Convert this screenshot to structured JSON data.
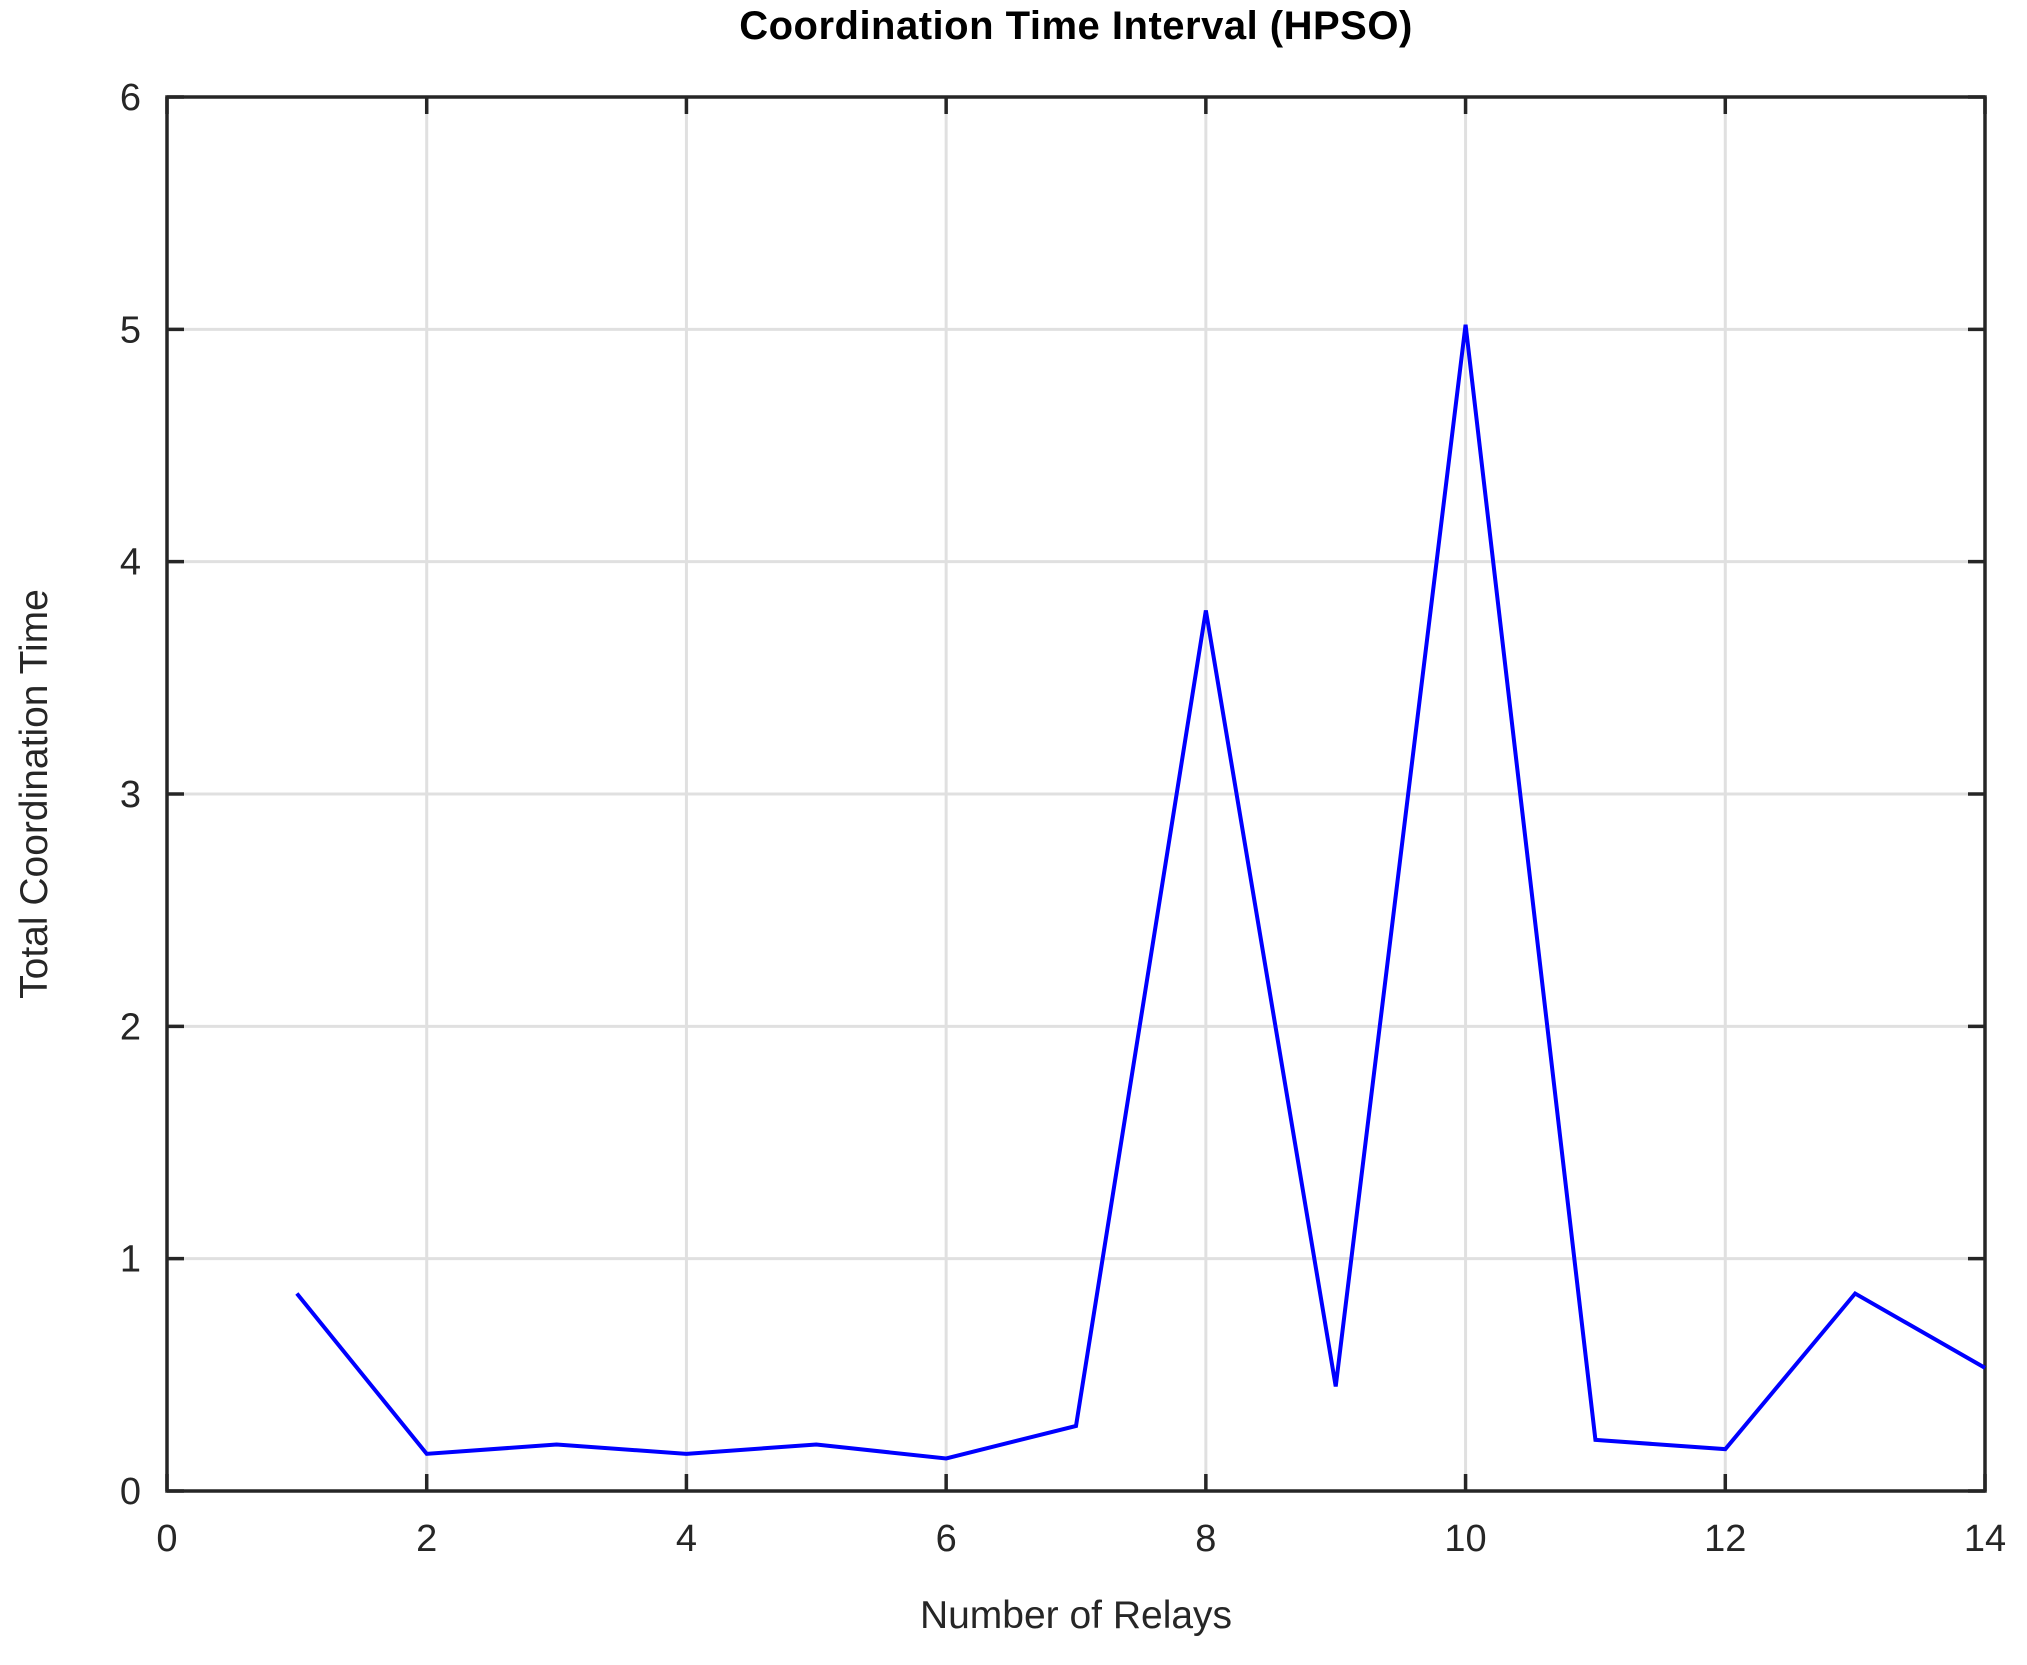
{
  "chart_data": {
    "type": "line",
    "title": "Coordination Time Interval (HPSO)",
    "xlabel": "Number of Relays",
    "ylabel": "Total Coordination Time",
    "x": [
      1,
      2,
      3,
      4,
      5,
      6,
      7,
      8,
      9,
      10,
      11,
      12,
      13,
      14
    ],
    "series": [
      {
        "name": "HPSO",
        "color": "#0000ff",
        "values": [
          0.85,
          0.16,
          0.2,
          0.16,
          0.2,
          0.14,
          0.28,
          3.79,
          0.45,
          5.02,
          0.22,
          0.18,
          0.85,
          0.53
        ]
      }
    ],
    "xlim": [
      0,
      14
    ],
    "ylim": [
      0,
      6
    ],
    "xticks": [
      0,
      2,
      4,
      6,
      8,
      10,
      12,
      14
    ],
    "yticks": [
      0,
      1,
      2,
      3,
      4,
      5,
      6
    ],
    "grid": true,
    "legend": false,
    "box": true,
    "axis_color": "#262626",
    "grid_color": "#e0e0e0",
    "background": "#ffffff"
  }
}
